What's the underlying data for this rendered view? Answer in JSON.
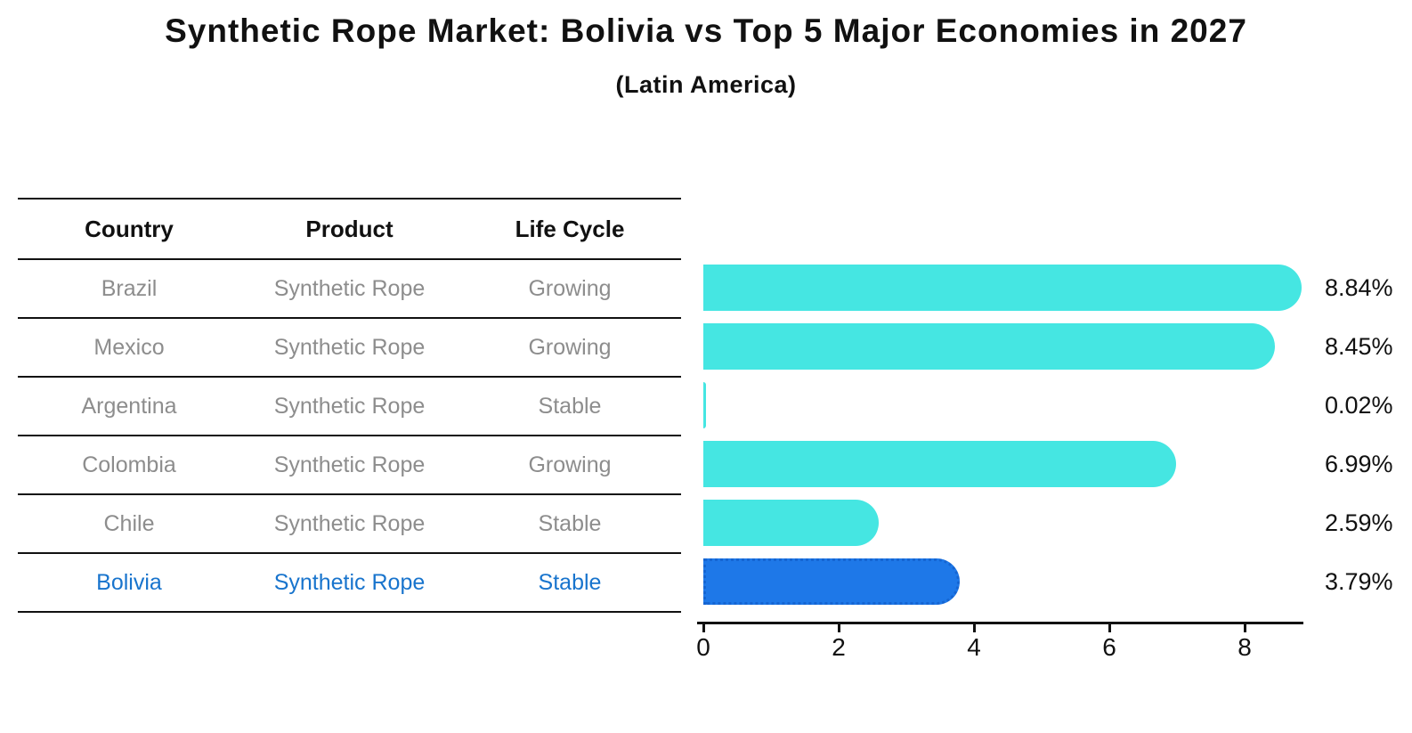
{
  "title": "Synthetic Rope Market: Bolivia vs Top 5 Major Economies in 2027",
  "subtitle": "(Latin America)",
  "table": {
    "columns": [
      "Country",
      "Product",
      "Life Cycle"
    ]
  },
  "chart_data": {
    "type": "bar",
    "orientation": "horizontal",
    "title": "Synthetic Rope Market: Bolivia vs Top 5 Major Economies in 2027 (Latin America)",
    "categories": [
      "Brazil",
      "Mexico",
      "Argentina",
      "Colombia",
      "Chile",
      "Bolivia"
    ],
    "values": [
      8.84,
      8.45,
      0.02,
      6.99,
      2.59,
      3.79
    ],
    "value_labels": [
      "8.84%",
      "8.45%",
      "0.02%",
      "6.99%",
      "2.59%",
      "3.79%"
    ],
    "rows": [
      {
        "country": "Brazil",
        "product": "Synthetic Rope",
        "life_cycle": "Growing",
        "value": 8.84,
        "label": "8.84%",
        "highlight": false
      },
      {
        "country": "Mexico",
        "product": "Synthetic Rope",
        "life_cycle": "Growing",
        "value": 8.45,
        "label": "8.45%",
        "highlight": false
      },
      {
        "country": "Argentina",
        "product": "Synthetic Rope",
        "life_cycle": "Stable",
        "value": 0.02,
        "label": "0.02%",
        "highlight": false
      },
      {
        "country": "Colombia",
        "product": "Synthetic Rope",
        "life_cycle": "Growing",
        "value": 6.99,
        "label": "6.99%",
        "highlight": false
      },
      {
        "country": "Chile",
        "product": "Synthetic Rope",
        "life_cycle": "Stable",
        "value": 2.59,
        "label": "2.59%",
        "highlight": false
      },
      {
        "country": "Bolivia",
        "product": "Synthetic Rope",
        "life_cycle": "Stable",
        "value": 3.79,
        "label": "3.79%",
        "highlight": true
      }
    ],
    "x_ticks": [
      0,
      2,
      4,
      6,
      8
    ],
    "xlim": [
      0,
      8.9
    ],
    "grid": false,
    "legend": "none",
    "highlight_country": "Bolivia",
    "bar_color": "#45E6E2",
    "highlight_bar_color": "#1E78E8",
    "highlight_border_color": "#1565D2",
    "highlight_text_color": "#1874CD",
    "row_text_color": "#8D8D8D",
    "axis_color": "#111111"
  }
}
